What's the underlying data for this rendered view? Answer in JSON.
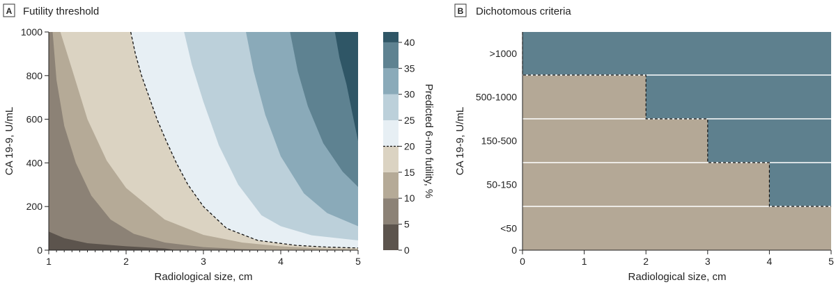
{
  "chart_data": [
    {
      "panel": "A",
      "title": "Futility threshold",
      "type": "heatmap",
      "subtype": "contour",
      "xlabel": "Radiological size, cm",
      "ylabel": "CA 19-9, U/mL",
      "xlim": [
        1,
        5
      ],
      "ylim": [
        0,
        1000
      ],
      "xticks": [
        "1",
        "2",
        "3",
        "4",
        "5"
      ],
      "yticks": [
        "0",
        "200",
        "400",
        "600",
        "800",
        "1000"
      ],
      "xticks_values": [
        1,
        2,
        3,
        4,
        5
      ],
      "yticks_values": [
        0,
        200,
        400,
        600,
        800,
        1000
      ],
      "colorbar": {
        "label": "Predicted 6-mo futility, %",
        "ticks": [
          "0",
          "5",
          "10",
          "15",
          "20",
          "25",
          "30",
          "35",
          "40"
        ],
        "tick_values": [
          0,
          5,
          10,
          15,
          20,
          25,
          30,
          35,
          40
        ],
        "levels": [
          0,
          5,
          10,
          15,
          20,
          25,
          30,
          35,
          40,
          42
        ],
        "colors": [
          "#5c544d",
          "#8c8276",
          "#b5aa97",
          "#dbd3c2",
          "#e7eff4",
          "#bcd0da",
          "#8aaab9",
          "#5e8291",
          "#2f5666"
        ],
        "threshold": 20
      },
      "contour_boundaries": [
        {
          "level": 5,
          "points": [
            [
              1.0,
              85
            ],
            [
              1.2,
              55
            ],
            [
              1.5,
              32
            ],
            [
              2.0,
              18
            ],
            [
              2.5,
              8
            ],
            [
              2.65,
              0
            ]
          ]
        },
        {
          "level": 10,
          "points": [
            [
              1.05,
              1000
            ],
            [
              1.1,
              780
            ],
            [
              1.2,
              570
            ],
            [
              1.35,
              400
            ],
            [
              1.55,
              250
            ],
            [
              1.8,
              140
            ],
            [
              2.1,
              75
            ],
            [
              2.5,
              35
            ],
            [
              3.0,
              14
            ],
            [
              3.5,
              5
            ],
            [
              4.0,
              0
            ]
          ]
        },
        {
          "level": 15,
          "points": [
            [
              1.15,
              1000
            ],
            [
              1.3,
              830
            ],
            [
              1.5,
              600
            ],
            [
              1.75,
              410
            ],
            [
              2.0,
              285
            ],
            [
              2.5,
              140
            ],
            [
              3.0,
              70
            ],
            [
              3.5,
              35
            ],
            [
              4.0,
              18
            ],
            [
              4.5,
              8
            ],
            [
              5.0,
              3
            ]
          ]
        },
        {
          "level": 20,
          "points": [
            [
              2.06,
              1000
            ],
            [
              2.12,
              900
            ],
            [
              2.2,
              800
            ],
            [
              2.3,
              700
            ],
            [
              2.4,
              600
            ],
            [
              2.52,
              500
            ],
            [
              2.65,
              400
            ],
            [
              2.8,
              300
            ],
            [
              3.0,
              200
            ],
            [
              3.3,
              100
            ],
            [
              3.7,
              45
            ],
            [
              4.2,
              22
            ],
            [
              4.6,
              14
            ],
            [
              5.0,
              10
            ]
          ]
        },
        {
          "level": 25,
          "points": [
            [
              2.75,
              1000
            ],
            [
              2.85,
              850
            ],
            [
              3.0,
              680
            ],
            [
              3.2,
              480
            ],
            [
              3.45,
              300
            ],
            [
              3.75,
              160
            ],
            [
              4.0,
              110
            ],
            [
              4.4,
              68
            ],
            [
              5.0,
              45
            ]
          ]
        },
        {
          "level": 30,
          "points": [
            [
              3.55,
              1000
            ],
            [
              3.65,
              820
            ],
            [
              3.8,
              620
            ],
            [
              4.0,
              430
            ],
            [
              4.3,
              260
            ],
            [
              4.6,
              170
            ],
            [
              5.0,
              110
            ]
          ]
        },
        {
          "level": 35,
          "points": [
            [
              4.12,
              1000
            ],
            [
              4.22,
              820
            ],
            [
              4.35,
              660
            ],
            [
              4.55,
              490
            ],
            [
              4.8,
              360
            ],
            [
              5.0,
              290
            ]
          ]
        },
        {
          "level": 40,
          "points": [
            [
              4.7,
              1000
            ],
            [
              4.76,
              880
            ],
            [
              4.85,
              760
            ],
            [
              4.93,
              620
            ],
            [
              5.0,
              500
            ]
          ]
        }
      ]
    },
    {
      "panel": "B",
      "title": "Dichotomous criteria",
      "type": "heatmap",
      "subtype": "categorical",
      "xlabel": "Radiological size, cm",
      "ylabel": "CA 19-9, U/mL",
      "xlim": [
        0,
        5
      ],
      "xticks": [
        "0",
        "1",
        "2",
        "3",
        "4",
        "5"
      ],
      "xticks_values": [
        0,
        1,
        2,
        3,
        4,
        5
      ],
      "y_categories": [
        "<50",
        "50-150",
        "150-500",
        "500-1000",
        ">1000"
      ],
      "y_zero_label": "0",
      "low_color": "#b4a896",
      "high_color": "#5e808e",
      "high_risk_from_size": {
        "<50": null,
        "50-150": 4,
        "150-500": 3,
        "500-1000": 2,
        ">1000": 0
      }
    }
  ]
}
